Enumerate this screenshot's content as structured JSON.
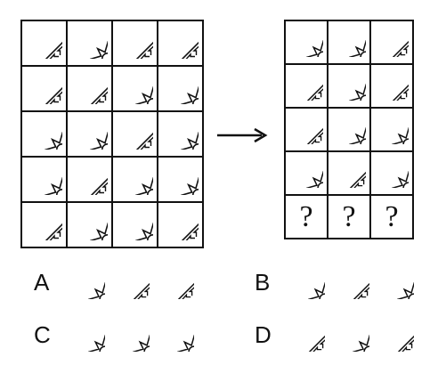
{
  "puzzle": {
    "left_grid": [
      [
        "diamond",
        "star",
        "diamond",
        "diamond"
      ],
      [
        "diamond",
        "diamond",
        "star",
        "star"
      ],
      [
        "star",
        "star",
        "diamond",
        "star"
      ],
      [
        "star",
        "diamond",
        "star",
        "star"
      ],
      [
        "diamond",
        "star",
        "star",
        "diamond"
      ]
    ],
    "right_grid": [
      [
        "star",
        "star",
        "diamond"
      ],
      [
        "diamond",
        "star",
        "diamond"
      ],
      [
        "diamond",
        "star",
        "star"
      ],
      [
        "star",
        "diamond",
        "star"
      ],
      [
        "?",
        "?",
        "?"
      ]
    ],
    "options": [
      {
        "letter": "A",
        "icons": [
          "star",
          "diamond",
          "diamond"
        ]
      },
      {
        "letter": "B",
        "icons": [
          "star",
          "diamond",
          "star"
        ]
      },
      {
        "letter": "C",
        "icons": [
          "star",
          "star",
          "star"
        ]
      },
      {
        "letter": "D",
        "icons": [
          "diamond",
          "star",
          "diamond"
        ]
      }
    ]
  }
}
